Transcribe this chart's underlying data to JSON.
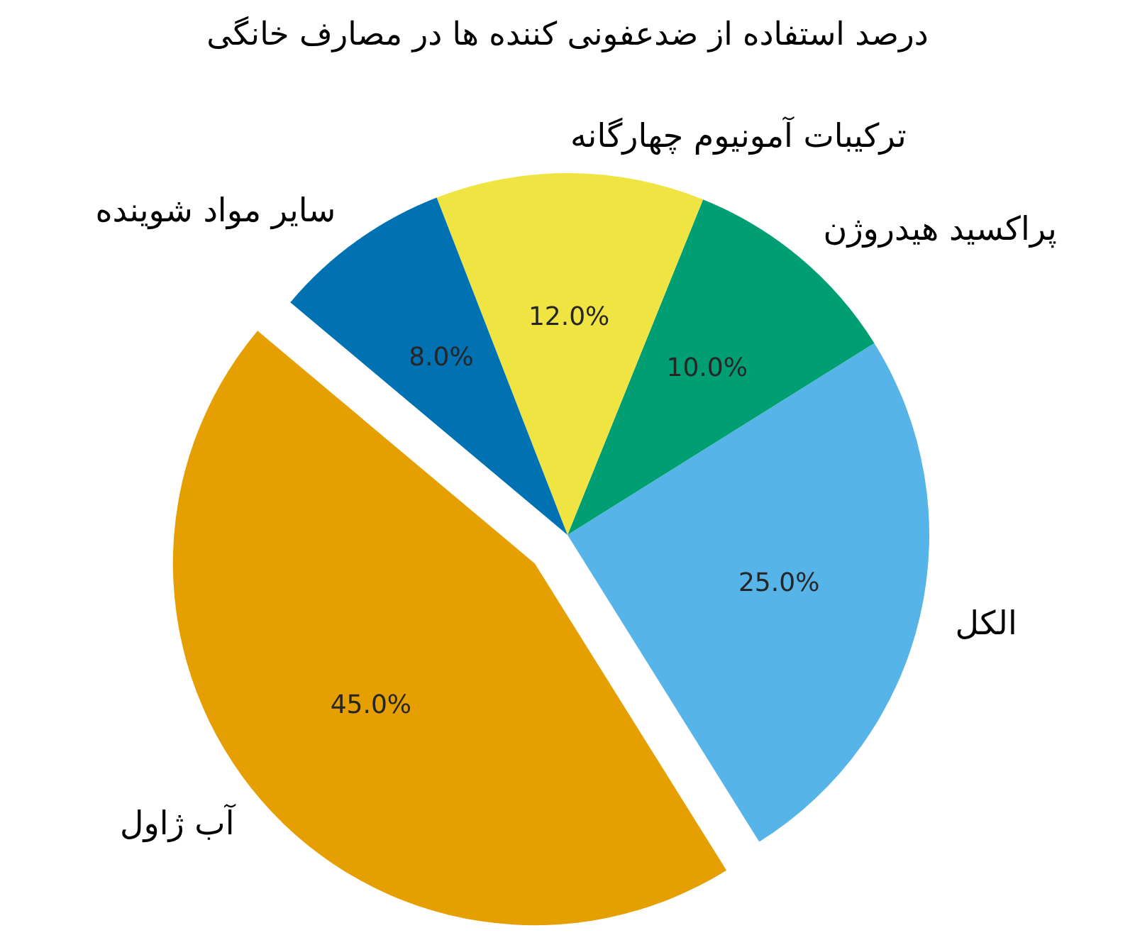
{
  "chart_data": {
    "type": "pie",
    "title": "درصد استفاده از ضدعفونی کننده ها در مصارف خانگی",
    "categories": [
      "آب ژاول",
      "الکل",
      "پراکسید هیدروژن",
      "ترکیبات آمونیوم چهارگانه",
      "سایر مواد شوینده"
    ],
    "values": [
      45,
      25,
      10,
      12,
      8
    ],
    "colors": [
      "#e69f00",
      "#56b4e9",
      "#009e73",
      "#f0e442",
      "#0072b2"
    ],
    "value_labels": [
      "45.0%",
      "25.0%",
      "10.0%",
      "12.0%",
      "8.0%"
    ]
  }
}
